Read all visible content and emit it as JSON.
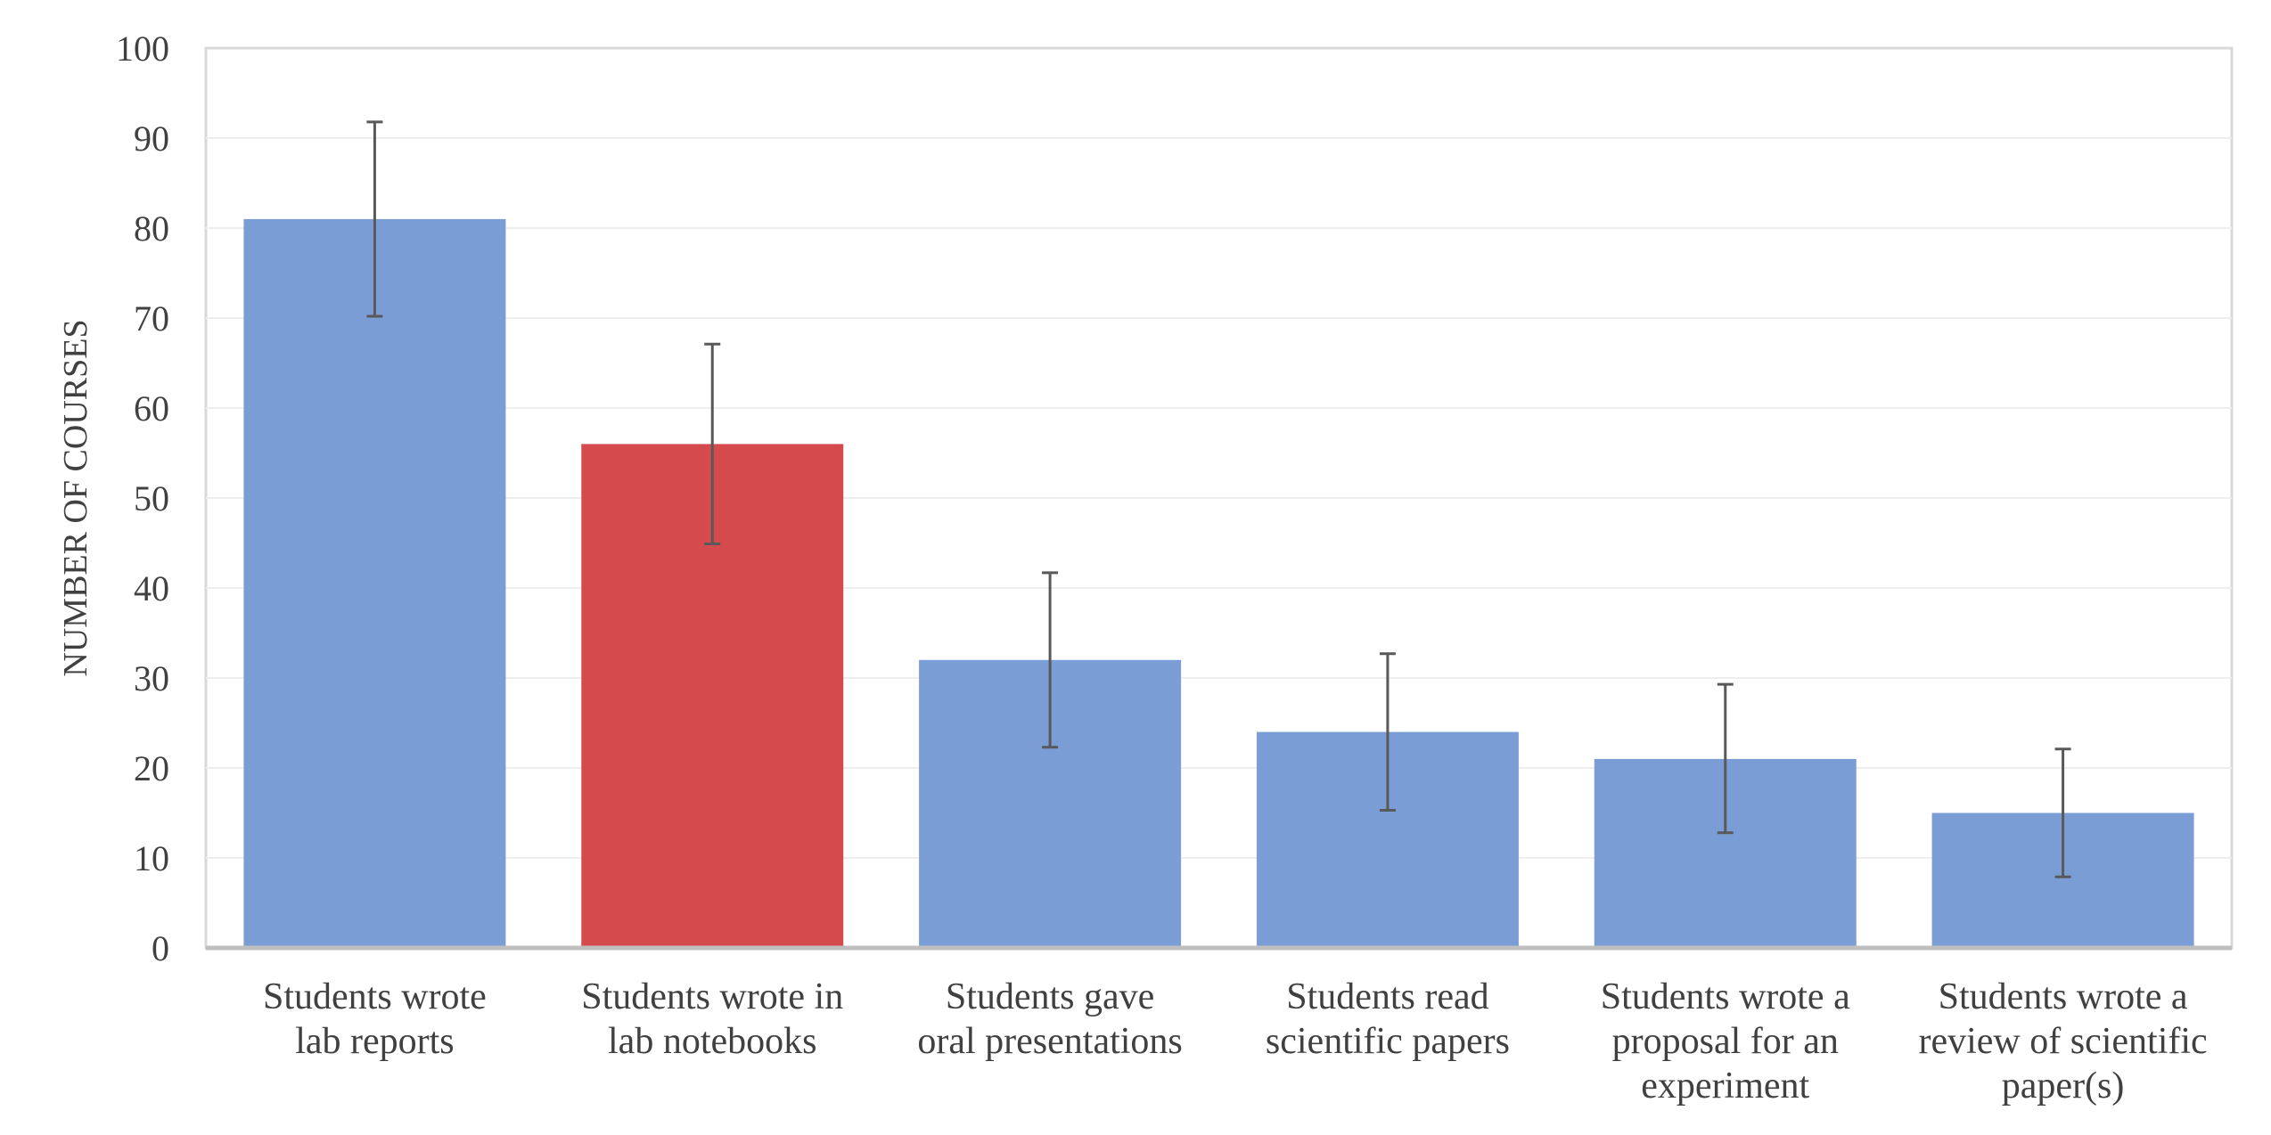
{
  "chart_data": {
    "type": "bar",
    "title": "",
    "xlabel": "",
    "ylabel": "NUMBER OF COURSES",
    "ylim": [
      0,
      100
    ],
    "yticks": [
      0,
      10,
      20,
      30,
      40,
      50,
      60,
      70,
      80,
      90,
      100
    ],
    "grid": true,
    "categories": [
      [
        "Students wrote",
        "lab reports"
      ],
      [
        "Students wrote in",
        "lab notebooks"
      ],
      [
        "Students gave",
        "oral presentations"
      ],
      [
        "Students read",
        "scientific papers"
      ],
      [
        "Students wrote a",
        "proposal for an",
        "experiment"
      ],
      [
        "Students wrote a",
        "review of scientific",
        "paper(s)"
      ]
    ],
    "values": [
      81,
      56,
      32,
      24,
      21,
      15
    ],
    "error_low": [
      70.2,
      44.9,
      22.3,
      15.3,
      12.8,
      7.9
    ],
    "error_high": [
      91.8,
      67.1,
      41.7,
      32.7,
      29.3,
      22.1
    ],
    "colors": [
      "#7b9dd6",
      "#d44a4d",
      "#7b9dd6",
      "#7b9dd6",
      "#7b9dd6",
      "#7b9dd6"
    ]
  }
}
